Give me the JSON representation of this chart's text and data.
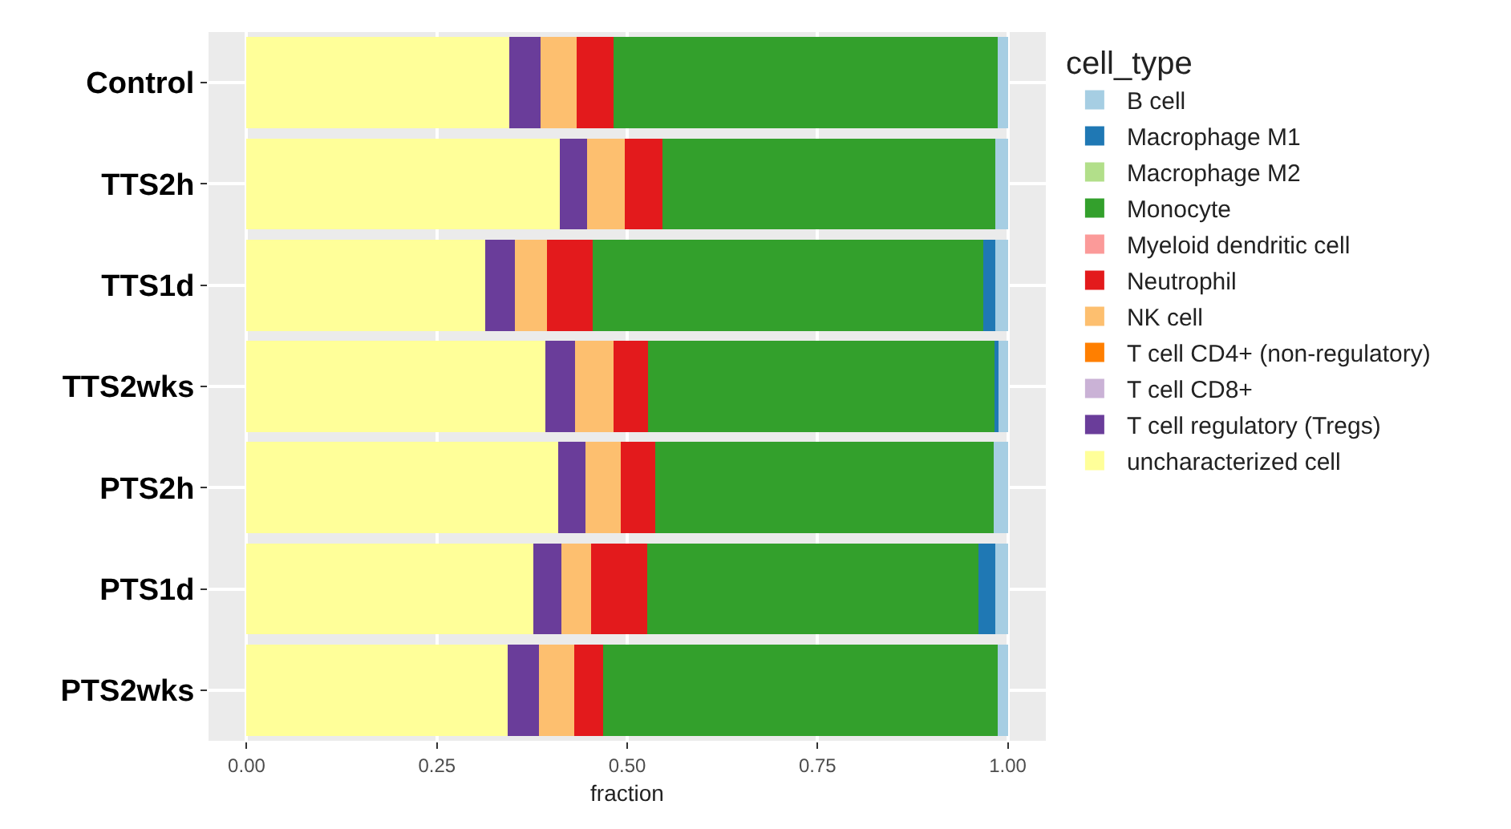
{
  "chart_data": {
    "type": "bar",
    "orientation": "horizontal",
    "stacked": true,
    "xlabel": "fraction",
    "legend_title": "cell_type",
    "legend": "right",
    "grid": true,
    "categories": [
      "Control",
      "TTS2h",
      "TTS1d",
      "TTS2wks",
      "PTS2h",
      "PTS1d",
      "PTS2wks"
    ],
    "xlim": [
      -0.05,
      1.05
    ],
    "xticks": [
      {
        "value": 0,
        "label": "0.00"
      },
      {
        "value": 0.25,
        "label": "0.25"
      },
      {
        "value": 0.5,
        "label": "0.50"
      },
      {
        "value": 0.75,
        "label": "0.75"
      },
      {
        "value": 1,
        "label": "1.00"
      }
    ],
    "series": [
      {
        "name": "uncharacterized cell",
        "color": "#ffff99",
        "values": [
          0.345,
          0.412,
          0.313,
          0.393,
          0.409,
          0.377,
          0.343
        ]
      },
      {
        "name": "T cell regulatory (Tregs)",
        "color": "#6a3d9a",
        "values": [
          0.041,
          0.035,
          0.039,
          0.039,
          0.036,
          0.037,
          0.041
        ]
      },
      {
        "name": "T cell CD8+",
        "color": "#cab2d6",
        "values": [
          0,
          0,
          0,
          0,
          0,
          0,
          0
        ]
      },
      {
        "name": "T cell CD4+ (non-regulatory)",
        "color": "#ff7f00",
        "values": [
          0,
          0,
          0,
          0,
          0,
          0,
          0
        ]
      },
      {
        "name": "NK cell",
        "color": "#fdbf6f",
        "values": [
          0.048,
          0.05,
          0.043,
          0.05,
          0.047,
          0.039,
          0.046
        ]
      },
      {
        "name": "Neutrophil",
        "color": "#e31a1c",
        "values": [
          0.048,
          0.049,
          0.06,
          0.045,
          0.045,
          0.073,
          0.038
        ]
      },
      {
        "name": "Myeloid dendritic cell",
        "color": "#fb9a99",
        "values": [
          0,
          0,
          0,
          0,
          0,
          0,
          0
        ]
      },
      {
        "name": "Monocyte",
        "color": "#33a02c",
        "values": [
          0.505,
          0.438,
          0.513,
          0.457,
          0.445,
          0.436,
          0.519
        ]
      },
      {
        "name": "Macrophage M2",
        "color": "#b2df8a",
        "values": [
          0,
          0,
          0,
          0,
          0,
          0,
          0
        ]
      },
      {
        "name": "Macrophage M1",
        "color": "#1f78b4",
        "values": [
          0,
          0,
          0.016,
          0.004,
          0,
          0.022,
          0
        ]
      },
      {
        "name": "B cell",
        "color": "#a6cee3",
        "values": [
          0.013,
          0.016,
          0.016,
          0.012,
          0.018,
          0.016,
          0.013
        ]
      }
    ]
  }
}
